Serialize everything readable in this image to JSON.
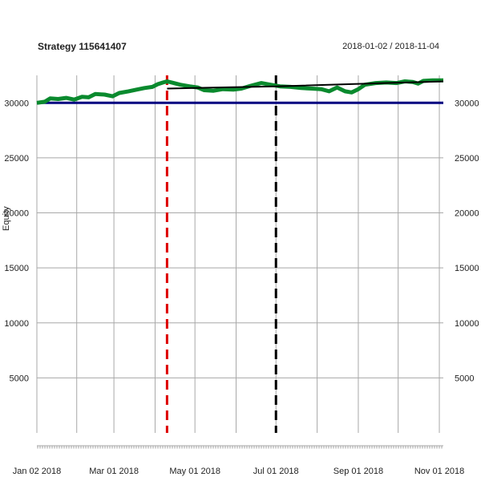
{
  "header": {
    "title": "Strategy 115641407",
    "date_range": "2018-01-02 / 2018-11-04"
  },
  "chart_data": {
    "type": "line",
    "title": "Strategy 115641407",
    "subtitle": "2018-01-02 / 2018-11-04",
    "xlabel": "",
    "ylabel": "Equity",
    "xlim": [
      "2018-01-02",
      "2018-11-04"
    ],
    "ylim": [
      0,
      32500
    ],
    "grid": true,
    "x_ticks": [
      {
        "date": "2018-01-02",
        "label": "Jan 02 2018"
      },
      {
        "date": "2018-03-01",
        "label": "Mar 01 2018"
      },
      {
        "date": "2018-05-01",
        "label": "May 01 2018"
      },
      {
        "date": "2018-07-01",
        "label": "Jul 01 2018"
      },
      {
        "date": "2018-09-01",
        "label": "Sep 01 2018"
      },
      {
        "date": "2018-11-01",
        "label": "Nov 01 2018"
      }
    ],
    "x_grid_dates": [
      "2018-01-02",
      "2018-02-01",
      "2018-03-01",
      "2018-04-01",
      "2018-05-01",
      "2018-06-01",
      "2018-07-01",
      "2018-08-01",
      "2018-09-01",
      "2018-10-01",
      "2018-11-01"
    ],
    "y_ticks": [
      5000,
      10000,
      15000,
      20000,
      25000,
      30000
    ],
    "series": [
      {
        "color": "#0a8a2e",
        "values": [
          [
            "2018-01-02",
            30000
          ],
          [
            "2018-01-08",
            30100
          ],
          [
            "2018-01-12",
            30400
          ],
          [
            "2018-01-18",
            30350
          ],
          [
            "2018-01-24",
            30450
          ],
          [
            "2018-01-30",
            30300
          ],
          [
            "2018-02-05",
            30550
          ],
          [
            "2018-02-10",
            30500
          ],
          [
            "2018-02-15",
            30800
          ],
          [
            "2018-02-22",
            30750
          ],
          [
            "2018-02-28",
            30600
          ],
          [
            "2018-03-05",
            30900
          ],
          [
            "2018-03-12",
            31050
          ],
          [
            "2018-03-18",
            31200
          ],
          [
            "2018-03-24",
            31350
          ],
          [
            "2018-03-30",
            31450
          ],
          [
            "2018-04-03",
            31700
          ],
          [
            "2018-04-07",
            31850
          ],
          [
            "2018-04-10",
            31950
          ],
          [
            "2018-04-15",
            31800
          ],
          [
            "2018-04-20",
            31650
          ],
          [
            "2018-04-27",
            31500
          ],
          [
            "2018-05-03",
            31400
          ],
          [
            "2018-05-08",
            31150
          ],
          [
            "2018-05-15",
            31100
          ],
          [
            "2018-05-22",
            31250
          ],
          [
            "2018-05-30",
            31200
          ],
          [
            "2018-06-05",
            31300
          ],
          [
            "2018-06-12",
            31550
          ],
          [
            "2018-06-20",
            31800
          ],
          [
            "2018-06-27",
            31650
          ],
          [
            "2018-07-04",
            31500
          ],
          [
            "2018-07-12",
            31450
          ],
          [
            "2018-07-20",
            31350
          ],
          [
            "2018-07-28",
            31300
          ],
          [
            "2018-08-04",
            31250
          ],
          [
            "2018-08-10",
            31050
          ],
          [
            "2018-08-16",
            31400
          ],
          [
            "2018-08-22",
            31050
          ],
          [
            "2018-08-27",
            30950
          ],
          [
            "2018-09-01",
            31250
          ],
          [
            "2018-09-06",
            31650
          ],
          [
            "2018-09-14",
            31800
          ],
          [
            "2018-09-22",
            31850
          ],
          [
            "2018-09-30",
            31800
          ],
          [
            "2018-10-06",
            31950
          ],
          [
            "2018-10-12",
            31900
          ],
          [
            "2018-10-16",
            31750
          ],
          [
            "2018-10-20",
            32000
          ],
          [
            "2018-10-27",
            32050
          ],
          [
            "2018-11-04",
            32050
          ]
        ]
      },
      {
        "color": "#000000",
        "values": [
          [
            "2018-04-10",
            31300
          ],
          [
            "2018-07-01",
            31500
          ],
          [
            "2018-11-04",
            31950
          ]
        ]
      }
    ],
    "reference_lines": [
      {
        "orientation": "horizontal",
        "value": 30000,
        "color": "#000080",
        "style": "solid"
      },
      {
        "orientation": "vertical",
        "value": "2018-04-10",
        "color": "#dd0000",
        "style": "dashed"
      },
      {
        "orientation": "vertical",
        "value": "2018-07-01",
        "color": "#000000",
        "style": "dashed"
      }
    ]
  }
}
